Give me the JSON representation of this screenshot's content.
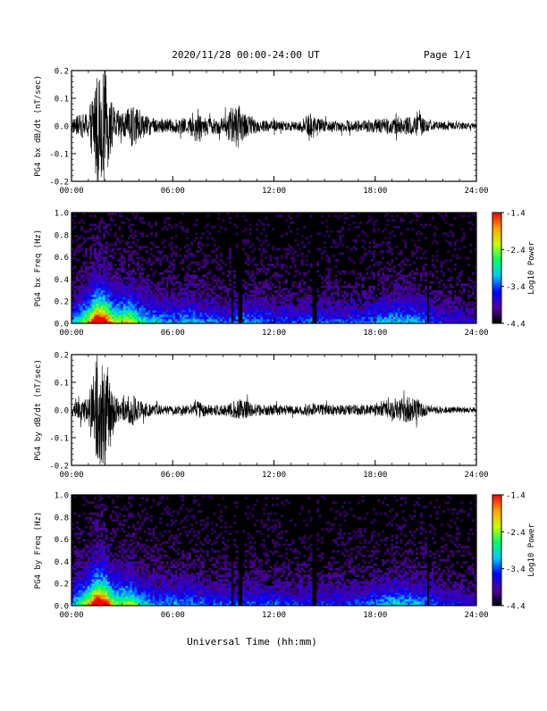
{
  "header": {
    "title": "2020/11/28  00:00-24:00 UT",
    "page_label": "Page 1/1"
  },
  "footer": {
    "xlabel": "Universal Time (hh:mm)"
  },
  "chart_data": [
    {
      "type": "line",
      "ylabel": "PG4 bx dB/dt (nT/sec)",
      "xlim": [
        0,
        24
      ],
      "ylim": [
        -0.2,
        0.2
      ],
      "yticks": [
        "-0.2",
        "-0.1",
        "0.0",
        "0.1",
        "0.2"
      ],
      "xticks": [
        "00:00",
        "06:00",
        "12:00",
        "18:00",
        "24:00"
      ],
      "grid": false,
      "envelope_hours": [
        0,
        0.5,
        1.0,
        1.5,
        1.8,
        2.0,
        2.3,
        2.6,
        3.2,
        3.7,
        4.0,
        4.5,
        5.0,
        6.0,
        7.0,
        7.5,
        7.8,
        8.2,
        9.0,
        9.5,
        9.9,
        10.2,
        10.5,
        11.0,
        12.0,
        13.5,
        14.2,
        15.0,
        16.0,
        17.0,
        18.0,
        19.0,
        20.0,
        20.6,
        21.0,
        22.0,
        23.0,
        24.0
      ],
      "envelope_amplitude": [
        0.025,
        0.04,
        0.05,
        0.22,
        0.18,
        0.22,
        0.1,
        0.06,
        0.05,
        0.09,
        0.05,
        0.035,
        0.03,
        0.025,
        0.03,
        0.07,
        0.04,
        0.03,
        0.03,
        0.07,
        0.08,
        0.05,
        0.035,
        0.025,
        0.02,
        0.018,
        0.05,
        0.02,
        0.02,
        0.022,
        0.025,
        0.03,
        0.032,
        0.045,
        0.02,
        0.015,
        0.012,
        0.012
      ]
    },
    {
      "type": "heatmap",
      "ylabel": "PG4 bx Freq (Hz)",
      "xlim": [
        0,
        24
      ],
      "ylim": [
        0,
        1
      ],
      "yticks": [
        "0.0",
        "0.2",
        "0.4",
        "0.6",
        "0.8",
        "1.0"
      ],
      "xticks": [
        "00:00",
        "06:00",
        "12:00",
        "18:00",
        "24:00"
      ],
      "colorbar": {
        "label": "Log10 Power",
        "range": [
          -4.4,
          -1.4
        ],
        "ticks": [
          "-1.4",
          "-2.4",
          "-3.4",
          "-4.4"
        ],
        "colors": [
          "#000000",
          "#5000a0",
          "#0000ff",
          "#00c8ff",
          "#00ff60",
          "#c8ff00",
          "#ffa000",
          "#ff0000"
        ]
      },
      "activity_hours": [
        0,
        1.0,
        1.5,
        2.0,
        2.5,
        3.5,
        4.0,
        5.0,
        6.0,
        7.0,
        8.0,
        9.0,
        10.0,
        11.0,
        12.0,
        13.0,
        14.0,
        15.0,
        16.0,
        17.0,
        18.0,
        19.0,
        20.0,
        21.0,
        22.0,
        23.0,
        24.0
      ],
      "activity_level": [
        0.3,
        0.6,
        1.0,
        0.9,
        0.55,
        0.6,
        0.45,
        0.35,
        0.3,
        0.35,
        0.3,
        0.25,
        0.3,
        0.3,
        0.25,
        0.25,
        0.25,
        0.25,
        0.25,
        0.25,
        0.3,
        0.35,
        0.35,
        0.3,
        0.2,
        0.2,
        0.15
      ],
      "gap_hours": [
        9.5,
        10.0,
        14.4,
        21.1
      ]
    },
    {
      "type": "line",
      "ylabel": "PG4 by dB/dt (nT/sec)",
      "xlim": [
        0,
        24
      ],
      "ylim": [
        -0.2,
        0.2
      ],
      "yticks": [
        "-0.2",
        "-0.1",
        "0.0",
        "0.1",
        "0.2"
      ],
      "xticks": [
        "00:00",
        "06:00",
        "12:00",
        "18:00",
        "24:00"
      ],
      "grid": false,
      "envelope_hours": [
        0,
        0.5,
        1.0,
        1.5,
        1.8,
        2.0,
        2.3,
        2.6,
        3.2,
        3.7,
        4.0,
        4.5,
        5.0,
        6.0,
        7.0,
        7.5,
        8.0,
        9.0,
        9.5,
        10.0,
        10.5,
        11.0,
        12.0,
        13.5,
        14.0,
        14.5,
        15.0,
        16.0,
        17.0,
        18.0,
        19.0,
        20.0,
        20.5,
        21.0,
        22.0,
        23.0,
        24.0
      ],
      "envelope_amplitude": [
        0.02,
        0.035,
        0.05,
        0.22,
        0.2,
        0.22,
        0.1,
        0.05,
        0.04,
        0.06,
        0.035,
        0.025,
        0.02,
        0.015,
        0.02,
        0.035,
        0.02,
        0.02,
        0.03,
        0.04,
        0.03,
        0.02,
        0.02,
        0.015,
        0.025,
        0.02,
        0.02,
        0.018,
        0.02,
        0.02,
        0.03,
        0.05,
        0.04,
        0.02,
        0.012,
        0.01,
        0.01
      ]
    },
    {
      "type": "heatmap",
      "ylabel": "PG4 by Freq (Hz)",
      "xlim": [
        0,
        24
      ],
      "ylim": [
        0,
        1
      ],
      "yticks": [
        "0.0",
        "0.2",
        "0.4",
        "0.6",
        "0.8",
        "1.0"
      ],
      "xticks": [
        "00:00",
        "06:00",
        "12:00",
        "18:00",
        "24:00"
      ],
      "colorbar": {
        "label": "Log10 Power",
        "range": [
          -4.4,
          -1.4
        ],
        "ticks": [
          "-1.4",
          "-2.4",
          "-3.4",
          "-4.4"
        ],
        "colors": [
          "#000000",
          "#5000a0",
          "#0000ff",
          "#00c8ff",
          "#00ff60",
          "#c8ff00",
          "#ffa000",
          "#ff0000"
        ]
      },
      "activity_hours": [
        0,
        1.0,
        1.5,
        2.0,
        2.5,
        3.5,
        4.0,
        5.0,
        6.0,
        7.0,
        8.0,
        9.0,
        10.0,
        11.0,
        12.0,
        13.0,
        14.0,
        15.0,
        16.0,
        17.0,
        18.0,
        19.0,
        20.0,
        21.0,
        22.0,
        23.0,
        24.0
      ],
      "activity_level": [
        0.3,
        0.6,
        1.0,
        0.9,
        0.5,
        0.55,
        0.4,
        0.3,
        0.3,
        0.3,
        0.25,
        0.25,
        0.25,
        0.25,
        0.25,
        0.22,
        0.22,
        0.22,
        0.22,
        0.25,
        0.3,
        0.35,
        0.35,
        0.3,
        0.2,
        0.2,
        0.15
      ],
      "gap_hours": [
        9.5,
        10.0,
        14.4,
        21.1
      ]
    }
  ]
}
